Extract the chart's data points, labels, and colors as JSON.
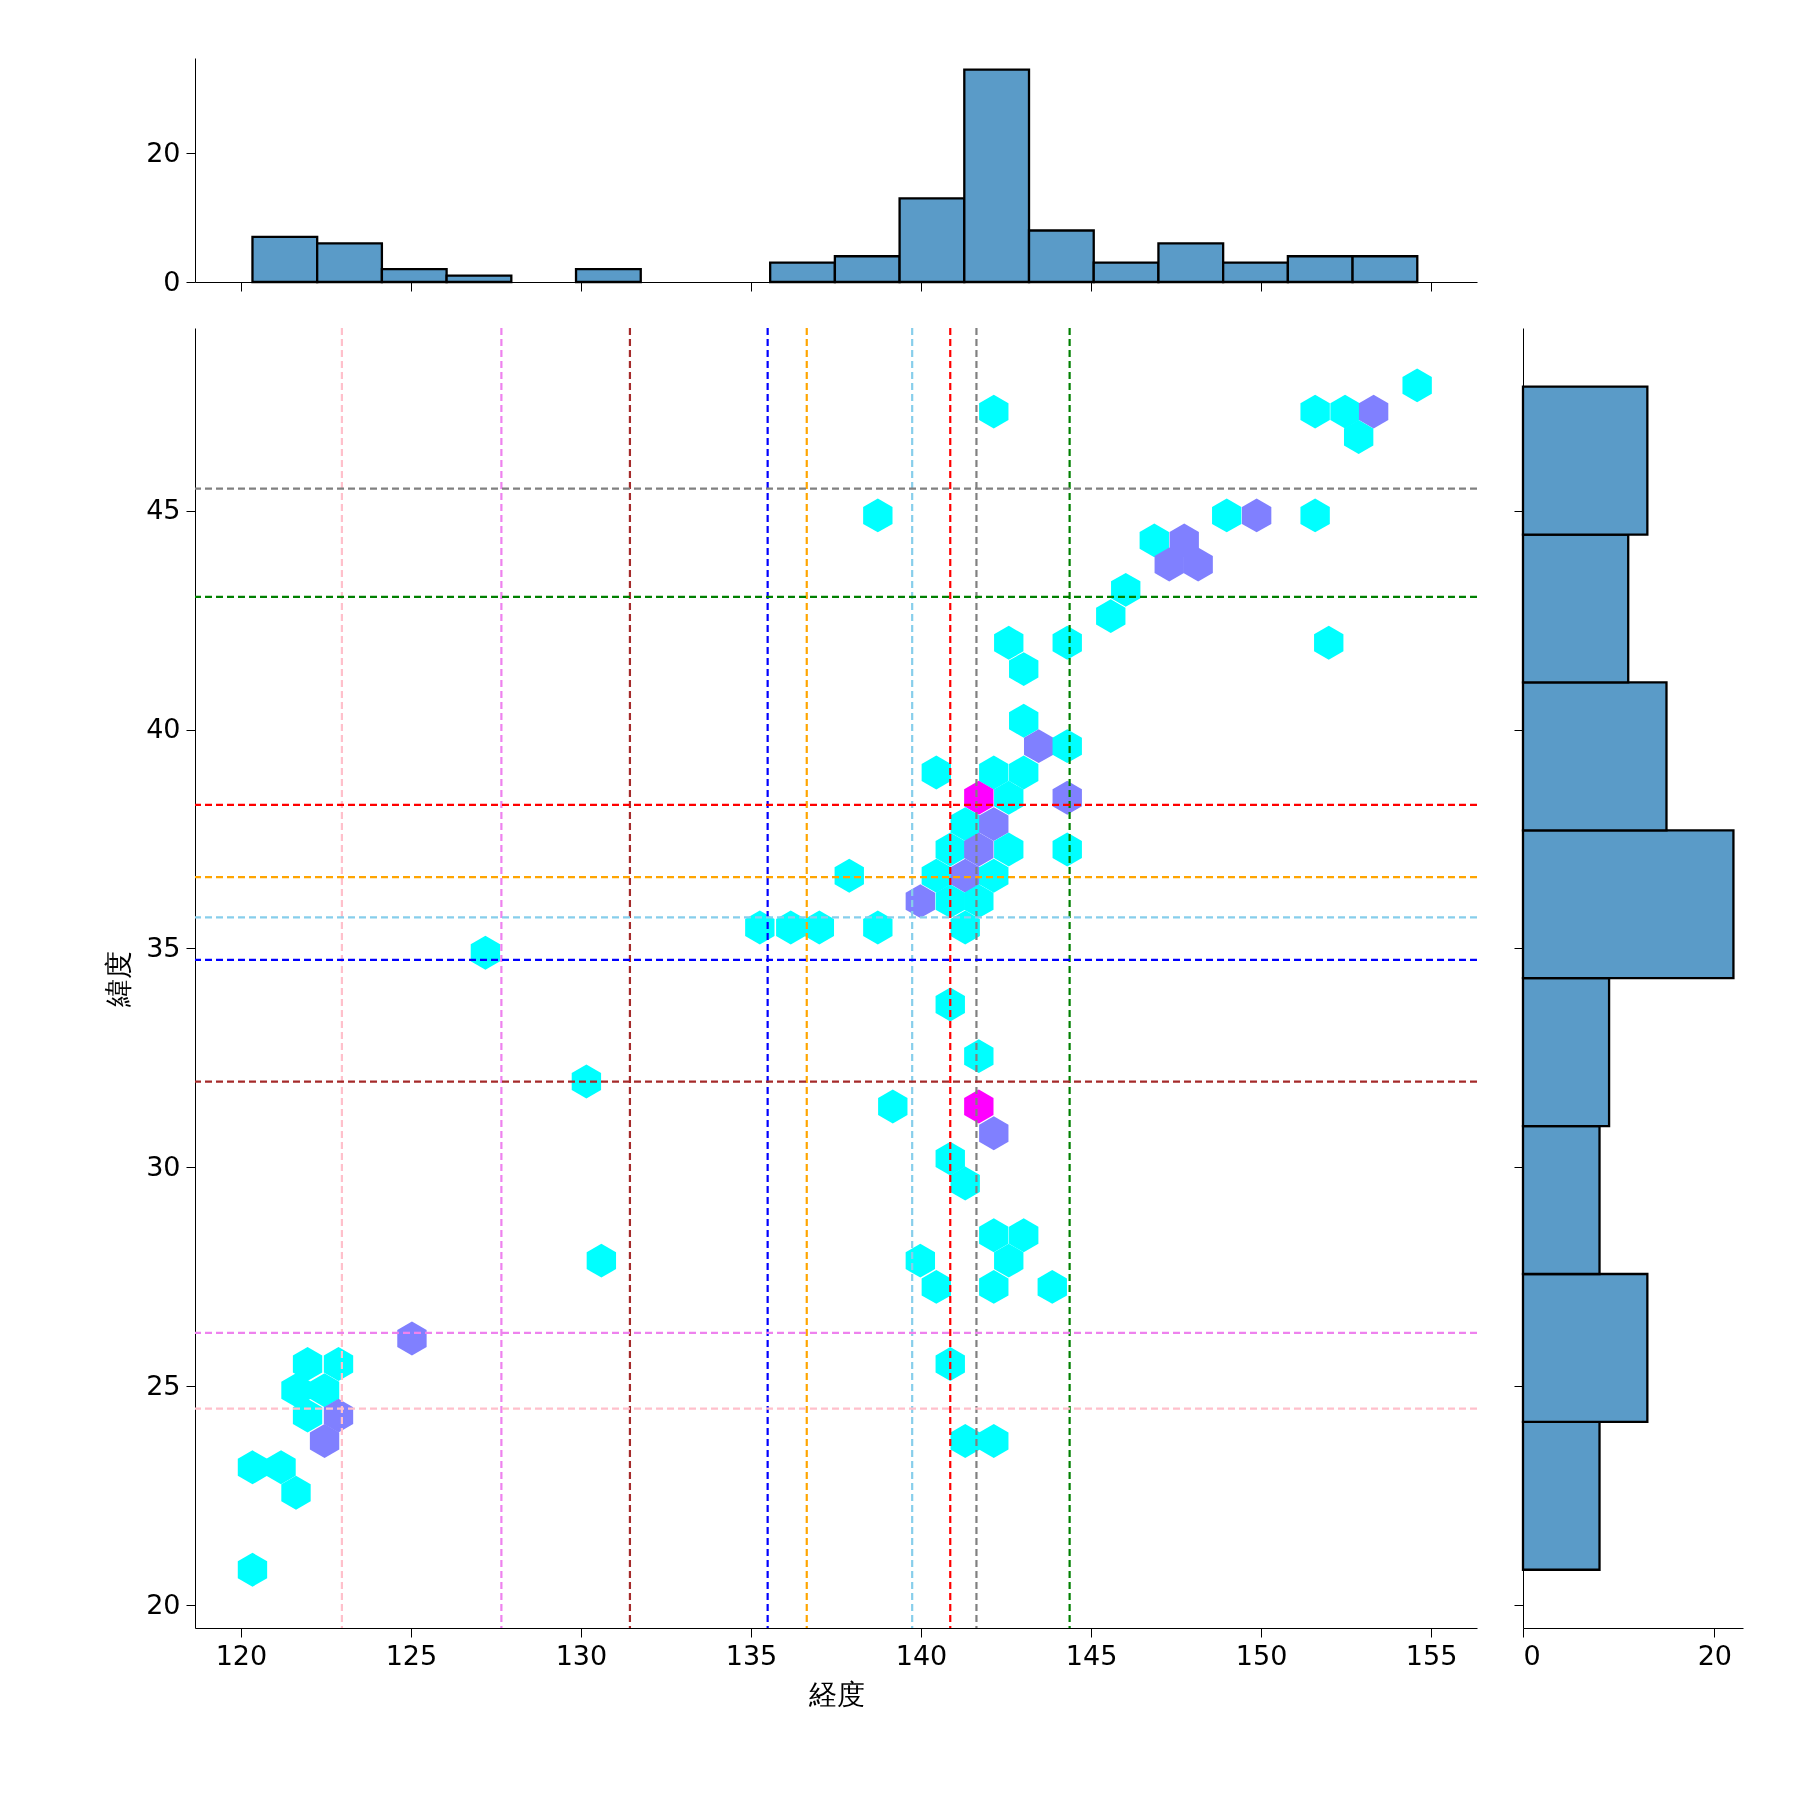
{
  "chart_data": [
    {
      "type": "histogram",
      "bins": [
        120.34,
        122.243,
        124.146,
        126.049,
        127.952,
        129.855,
        131.758,
        133.661,
        135.564,
        137.467,
        139.37,
        141.273,
        143.176,
        145.079,
        146.982,
        148.885,
        150.788,
        152.691,
        154.594
      ],
      "values": [
        7,
        6,
        2,
        1,
        0,
        2,
        0,
        0,
        3,
        4,
        13,
        33,
        8,
        3,
        6,
        3,
        4,
        4
      ],
      "color": "#5a9bc8",
      "xlim": [
        118.65,
        156.35
      ],
      "xticks": [
        120,
        125,
        130,
        135,
        140,
        145,
        150,
        155
      ],
      "ylim": [
        0,
        34.8
      ],
      "yticks": [
        0,
        20
      ],
      "tick_labels": "y"
    },
    {
      "type": "scatter",
      "xlabel": "経度",
      "ylabel": "緯度",
      "xlim": [
        118.65,
        156.35
      ],
      "xticks": [
        120,
        125,
        130,
        135,
        140,
        145,
        150,
        155
      ],
      "ylim": [
        19.48,
        49.17
      ],
      "yticks": [
        20,
        25,
        30,
        35,
        40,
        45
      ],
      "x": [
        142.14,
        154.59,
        151.59,
        152.47,
        153.31,
        152.87,
        138.73,
        148.99,
        149.87,
        151.59,
        146.86,
        147.74,
        147.3,
        148.15,
        146.02,
        145.58,
        142.58,
        144.3,
        151.99,
        143.02,
        143.02,
        143.46,
        144.3,
        140.45,
        142.14,
        143.02,
        142.58,
        141.7,
        144.3,
        141.3,
        142.14,
        140.86,
        141.7,
        142.58,
        144.3,
        137.89,
        140.45,
        141.3,
        142.14,
        139.98,
        140.86,
        141.7,
        135.26,
        136.17,
        137.01,
        138.73,
        141.3,
        127.19,
        140.86,
        141.7,
        130.16,
        139.17,
        141.7,
        142.14,
        140.86,
        141.3,
        142.14,
        143.02,
        142.58,
        130.6,
        139.98,
        140.45,
        142.14,
        143.86,
        125.03,
        121.96,
        122.87,
        140.86,
        121.62,
        122.46,
        121.96,
        122.87,
        122.46,
        141.3,
        142.14,
        120.34,
        121.18,
        121.62,
        120.34
      ],
      "values": [
        47.26,
        47.86,
        47.26,
        47.26,
        47.26,
        46.68,
        44.89,
        44.89,
        44.89,
        44.89,
        44.32,
        44.32,
        43.77,
        43.77,
        43.19,
        42.59,
        41.98,
        41.98,
        41.98,
        41.38,
        40.2,
        39.62,
        39.62,
        39.02,
        39.02,
        39.02,
        38.44,
        38.44,
        38.44,
        37.84,
        37.84,
        37.26,
        37.26,
        37.26,
        37.26,
        36.66,
        36.66,
        36.66,
        36.66,
        36.08,
        36.08,
        36.08,
        35.48,
        35.48,
        35.48,
        35.48,
        35.48,
        34.9,
        33.72,
        32.54,
        31.96,
        31.39,
        31.39,
        30.78,
        30.2,
        29.63,
        28.45,
        28.45,
        27.87,
        27.87,
        27.87,
        27.27,
        27.27,
        27.27,
        26.09,
        25.51,
        25.51,
        25.51,
        24.91,
        24.91,
        24.33,
        24.33,
        23.75,
        23.75,
        23.75,
        23.15,
        23.15,
        22.57,
        20.81
      ],
      "colors": [
        "#00ffff",
        "#00ffff",
        "#00ffff",
        "#00ffff",
        "#8080ff",
        "#00ffff",
        "#00ffff",
        "#00ffff",
        "#8080ff",
        "#00ffff",
        "#00ffff",
        "#8080ff",
        "#8080ff",
        "#8080ff",
        "#00ffff",
        "#00ffff",
        "#00ffff",
        "#00ffff",
        "#00ffff",
        "#00ffff",
        "#00ffff",
        "#8080ff",
        "#00ffff",
        "#00ffff",
        "#00ffff",
        "#00ffff",
        "#00ffff",
        "#ff00ff",
        "#8080ff",
        "#00ffff",
        "#8080ff",
        "#00ffff",
        "#8080ff",
        "#00ffff",
        "#00ffff",
        "#00ffff",
        "#00ffff",
        "#8080ff",
        "#00ffff",
        "#8080ff",
        "#00ffff",
        "#00ffff",
        "#00ffff",
        "#00ffff",
        "#00ffff",
        "#00ffff",
        "#00ffff",
        "#00ffff",
        "#00ffff",
        "#00ffff",
        "#00ffff",
        "#00ffff",
        "#ff00ff",
        "#8080ff",
        "#00ffff",
        "#00ffff",
        "#00ffff",
        "#00ffff",
        "#00ffff",
        "#00ffff",
        "#00ffff",
        "#00ffff",
        "#00ffff",
        "#00ffff",
        "#8080ff",
        "#00ffff",
        "#00ffff",
        "#00ffff",
        "#00ffff",
        "#00ffff",
        "#00ffff",
        "#8080ff",
        "#8080ff",
        "#00ffff",
        "#00ffff",
        "#00ffff",
        "#00ffff",
        "#00ffff",
        "#00ffff"
      ],
      "ref_lines": [
        {
          "axis": "x",
          "value": 122.97,
          "color": "#ffc0cb",
          "line_style": "dashed"
        },
        {
          "axis": "x",
          "value": 127.66,
          "color": "#ee82ee",
          "line_style": "dashed"
        },
        {
          "axis": "x",
          "value": 131.44,
          "color": "#a52a2a",
          "line_style": "dashed"
        },
        {
          "axis": "x",
          "value": 135.49,
          "color": "#0000ff",
          "line_style": "dashed"
        },
        {
          "axis": "x",
          "value": 136.64,
          "color": "#ffa500",
          "line_style": "dashed"
        },
        {
          "axis": "x",
          "value": 139.74,
          "color": "#87ceeb",
          "line_style": "dashed"
        },
        {
          "axis": "x",
          "value": 140.86,
          "color": "#ff0000",
          "line_style": "dashed"
        },
        {
          "axis": "x",
          "value": 141.63,
          "color": "#808080",
          "line_style": "dashed"
        },
        {
          "axis": "x",
          "value": 144.37,
          "color": "#008000",
          "line_style": "dashed"
        },
        {
          "axis": "y",
          "value": 45.5,
          "color": "#808080",
          "line_style": "dashed"
        },
        {
          "axis": "y",
          "value": 43.03,
          "color": "#008000",
          "line_style": "dashed"
        },
        {
          "axis": "y",
          "value": 38.28,
          "color": "#ff0000",
          "line_style": "dashed"
        },
        {
          "axis": "y",
          "value": 36.63,
          "color": "#ffa500",
          "line_style": "dashed"
        },
        {
          "axis": "y",
          "value": 35.71,
          "color": "#87ceeb",
          "line_style": "dashed"
        },
        {
          "axis": "y",
          "value": 34.74,
          "color": "#0000ff",
          "line_style": "dashed"
        },
        {
          "axis": "y",
          "value": 31.96,
          "color": "#a52a2a",
          "line_style": "dashed"
        },
        {
          "axis": "y",
          "value": 26.22,
          "color": "#ee82ee",
          "line_style": "dashed"
        },
        {
          "axis": "y",
          "value": 24.49,
          "color": "#ffc0cb",
          "line_style": "dashed"
        }
      ]
    },
    {
      "type": "histogram",
      "orientation": "horizontal",
      "bins": [
        20.81,
        24.188,
        27.565,
        30.943,
        34.32,
        37.698,
        41.075,
        44.453,
        47.83
      ],
      "values": [
        8,
        13,
        8,
        9,
        22,
        15,
        11,
        13
      ],
      "color": "#5a9bc8",
      "xlim": [
        0,
        23
      ],
      "xticks": [
        0,
        20
      ],
      "ylim": [
        19.48,
        49.17
      ],
      "yticks": [
        20,
        25,
        30,
        35,
        40,
        45
      ],
      "tick_labels": "x"
    }
  ]
}
